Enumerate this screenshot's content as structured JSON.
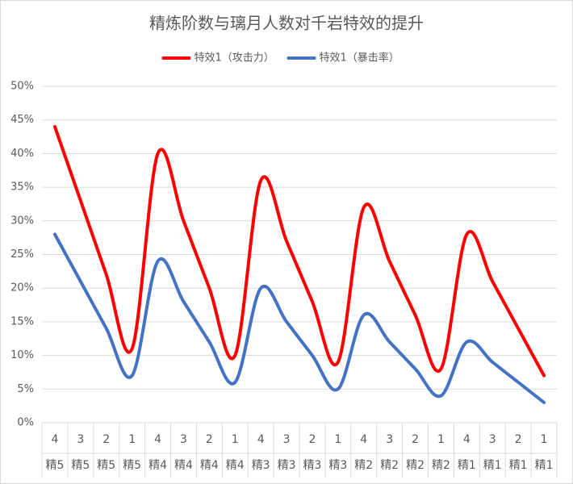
{
  "chart_data": {
    "type": "line",
    "title": "精炼阶数与璃月人数对千岩特效的提升",
    "categories": [
      "4",
      "3",
      "2",
      "1",
      "4",
      "3",
      "2",
      "1",
      "4",
      "3",
      "2",
      "1",
      "4",
      "3",
      "2",
      "1",
      "4",
      "3",
      "2",
      "1"
    ],
    "category_groups": [
      "精5",
      "精5",
      "精5",
      "精5",
      "精4",
      "精4",
      "精4",
      "精4",
      "精3",
      "精3",
      "精3",
      "精3",
      "精2",
      "精2",
      "精2",
      "精2",
      "精1",
      "精1",
      "精1",
      "精1"
    ],
    "series": [
      {
        "name": "特效1（攻击力）",
        "color": "#ff0000",
        "values": [
          44,
          33,
          22,
          11,
          40,
          30,
          20,
          10,
          36,
          27,
          18,
          9,
          32,
          24,
          16,
          8,
          28,
          21,
          14,
          7
        ]
      },
      {
        "name": "特效1（暴击率）",
        "color": "#4472c4",
        "values": [
          28,
          21,
          14,
          7,
          24,
          18,
          12,
          6,
          20,
          15,
          10,
          5,
          16,
          12,
          8,
          4,
          12,
          9,
          6,
          3
        ]
      }
    ],
    "ylim": [
      0,
      50
    ],
    "yticks": [
      {
        "value": 0,
        "label": "0%"
      },
      {
        "value": 5,
        "label": "5%"
      },
      {
        "value": 10,
        "label": "10%"
      },
      {
        "value": 15,
        "label": "15%"
      },
      {
        "value": 20,
        "label": "20%"
      },
      {
        "value": 25,
        "label": "25%"
      },
      {
        "value": 30,
        "label": "30%"
      },
      {
        "value": 35,
        "label": "35%"
      },
      {
        "value": 40,
        "label": "40%"
      },
      {
        "value": 45,
        "label": "45%"
      },
      {
        "value": 50,
        "label": "50%"
      }
    ],
    "grid": true,
    "smooth": true,
    "legend": "top"
  }
}
